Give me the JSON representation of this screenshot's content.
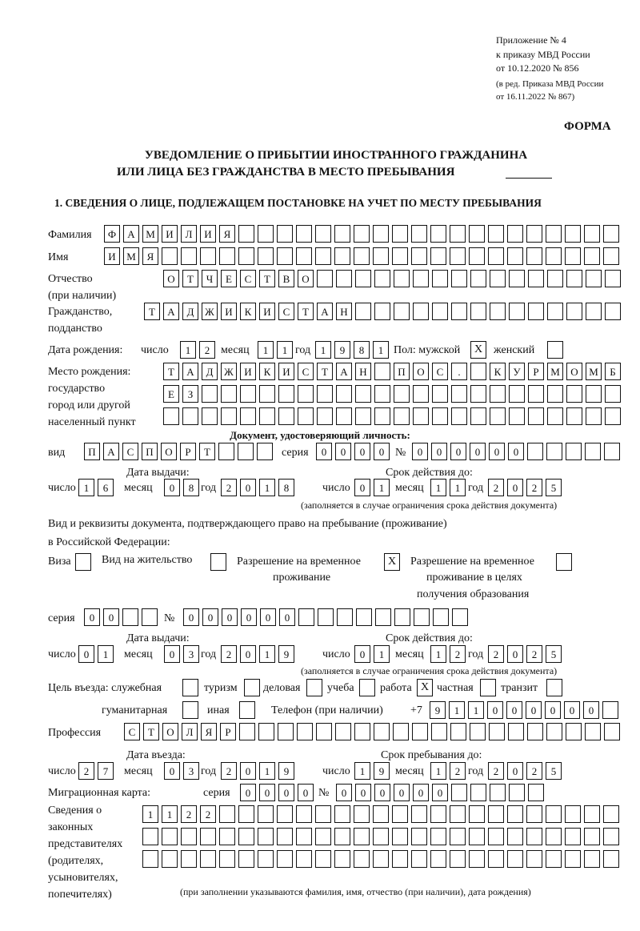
{
  "header": {
    "line1": "Приложение № 4",
    "line2": "к приказу МВД России",
    "line3": "от 10.12.2020 № 856",
    "line4": "(в ред. Приказа МВД России",
    "line5": "от 16.11.2022 № 867)",
    "form_label": "ФОРМА"
  },
  "title": {
    "line1": "УВЕДОМЛЕНИЕ О ПРИБЫТИИ ИНОСТРАННОГО ГРАЖДАНИНА",
    "line2": "ИЛИ ЛИЦА БЕЗ ГРАЖДАНСТВА В МЕСТО ПРЕБЫВАНИЯ"
  },
  "section1": {
    "heading": "1. СВЕДЕНИЯ О ЛИЦЕ, ПОДЛЕЖАЩЕМ ПОСТАНОВКЕ НА УЧЕТ ПО МЕСТУ ПРЕБЫВАНИЯ",
    "surname": {
      "label": "Фамилия",
      "value": "ФАМИЛИЯ"
    },
    "name": {
      "label": "Имя",
      "value": "ИМЯ"
    },
    "patronymic": {
      "label": "Отчество",
      "label2": "(при наличии)",
      "value": "ОТЧЕСТВО"
    },
    "citizenship": {
      "label": "Гражданство,",
      "label2": "подданство",
      "value": "ТАДЖИКИСТАН"
    },
    "birth_date": {
      "label": "Дата рождения:",
      "day_label": "число",
      "day": "12",
      "month_label": "месяц",
      "month": "11",
      "year_label": "год",
      "year": "1981"
    },
    "sex": {
      "label": "Пол: мужской",
      "male": "X",
      "female_label": "женский",
      "female": ""
    },
    "birth_place": {
      "label1": "Место рождения:",
      "label2": "государство",
      "label3": "город или другой",
      "label4": "населенный пункт",
      "line1": "ТАДЖИКИСТАН ПОС. КУРМОМБ",
      "line2": "ЕЗ",
      "line3": ""
    },
    "id_document": {
      "heading": "Документ, удостоверяющий личность:",
      "type_label": "вид",
      "type": "ПАСПОРТ",
      "series_label": "серия",
      "series": "0000",
      "number_label": "№",
      "number": "000000",
      "issue_label": "Дата выдачи:",
      "issue_day": "16",
      "issue_month": "08",
      "issue_year": "2018",
      "valid_label": "Срок действия до:",
      "valid_day": "01",
      "valid_month": "11",
      "valid_year": "2025",
      "note": "(заполняется в случае ограничения срока действия документа)"
    },
    "day_label": "число",
    "month_label": "месяц",
    "year_label": "год",
    "stay_document": {
      "text1": "Вид и реквизиты документа, подтверждающего право на пребывание (проживание)",
      "text2": "в Российской Федерации:",
      "visa_label": "Виза",
      "visa": "",
      "residence_label": "Вид на жительство",
      "residence": "",
      "temp_label1": "Разрешение на временное",
      "temp_label2": "проживание",
      "temp": "X",
      "edu_label1": "Разрешение на временное",
      "edu_label2": "проживание в целях",
      "edu_label3": "получения образования",
      "edu": "",
      "series_label": "серия",
      "series": "00",
      "number_label": "№",
      "number": "000000",
      "issue_label": "Дата выдачи:",
      "issue_day": "01",
      "issue_month": "03",
      "issue_year": "2019",
      "valid_label": "Срок действия до:",
      "valid_day": "01",
      "valid_month": "12",
      "valid_year": "2025",
      "note": "(заполняется в случае ограничения срока действия документа)"
    },
    "purpose": {
      "label": "Цель въезда: служебная",
      "official": "",
      "tourism_label": "туризм",
      "tourism": "",
      "business_label": "деловая",
      "business": "",
      "study_label": "учеба",
      "study": "",
      "work_label": "работа",
      "work": "X",
      "private_label": "частная",
      "private": "",
      "transit_label": "транзит",
      "transit": "",
      "humanitarian_label": "гуманитарная",
      "humanitarian": "",
      "other_label": "иная",
      "other": ""
    },
    "phone": {
      "label": "Телефон (при наличии)",
      "prefix": "+7",
      "value": "911000000"
    },
    "profession": {
      "label": "Профессия",
      "value": "СТОЛЯР"
    },
    "entry": {
      "entry_label": "Дата въезда:",
      "entry_day": "27",
      "entry_month": "03",
      "entry_year": "2019",
      "stay_label": "Срок пребывания до:",
      "stay_day": "19",
      "stay_month": "12",
      "stay_year": "2025"
    },
    "migration_card": {
      "label": "Миграционная карта:",
      "series_label": "серия",
      "series": "0000",
      "number_label": "№",
      "number": "000000"
    },
    "representatives": {
      "label1": "Сведения о",
      "label2": "законных",
      "label3": "представителях",
      "label4": "(родителях,",
      "label5": "усыновителях,",
      "label6": "попечителях)",
      "line1": "1122",
      "line2": "",
      "line3": "",
      "note": "(при заполнении указываются фамилия, имя, отчество (при наличии), дата рождения)"
    }
  }
}
